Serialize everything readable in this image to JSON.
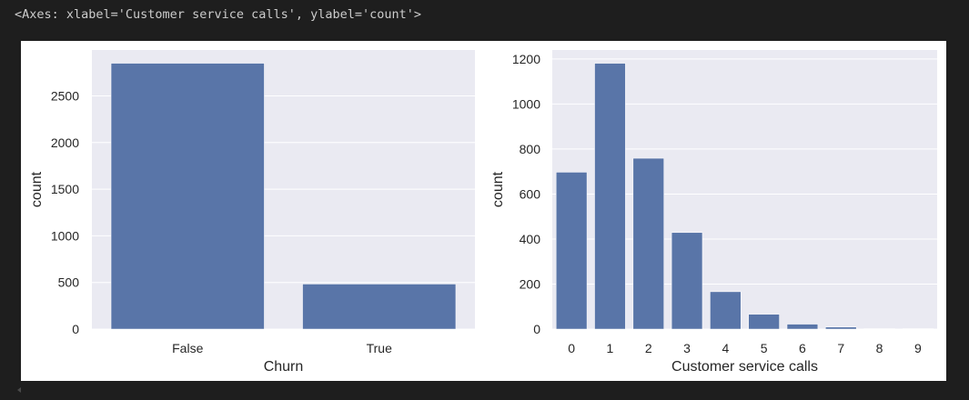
{
  "output_text": "<Axes: xlabel='Customer service calls', ylabel='count'>",
  "colors": {
    "background": "#1e1e1e",
    "figure": "#ffffff",
    "axes_face": "#eaeaf2",
    "bar": "#5975a8",
    "grid": "#ffffff",
    "text": "#262626"
  },
  "chart_data": [
    {
      "type": "bar",
      "title": "",
      "xlabel": "Churn",
      "ylabel": "count",
      "categories": [
        "False",
        "True"
      ],
      "values": [
        2850,
        483
      ],
      "ylim": [
        0,
        2992
      ],
      "yticks": [
        0,
        500,
        1000,
        1500,
        2000,
        2500
      ],
      "grid": true
    },
    {
      "type": "bar",
      "title": "",
      "xlabel": "Customer service calls",
      "ylabel": "count",
      "categories": [
        "0",
        "1",
        "2",
        "3",
        "4",
        "5",
        "6",
        "7",
        "8",
        "9"
      ],
      "values": [
        697,
        1181,
        759,
        429,
        166,
        66,
        22,
        9,
        2,
        2
      ],
      "ylim": [
        0,
        1240
      ],
      "yticks": [
        0,
        200,
        400,
        600,
        800,
        1000,
        1200
      ],
      "grid": true
    }
  ]
}
